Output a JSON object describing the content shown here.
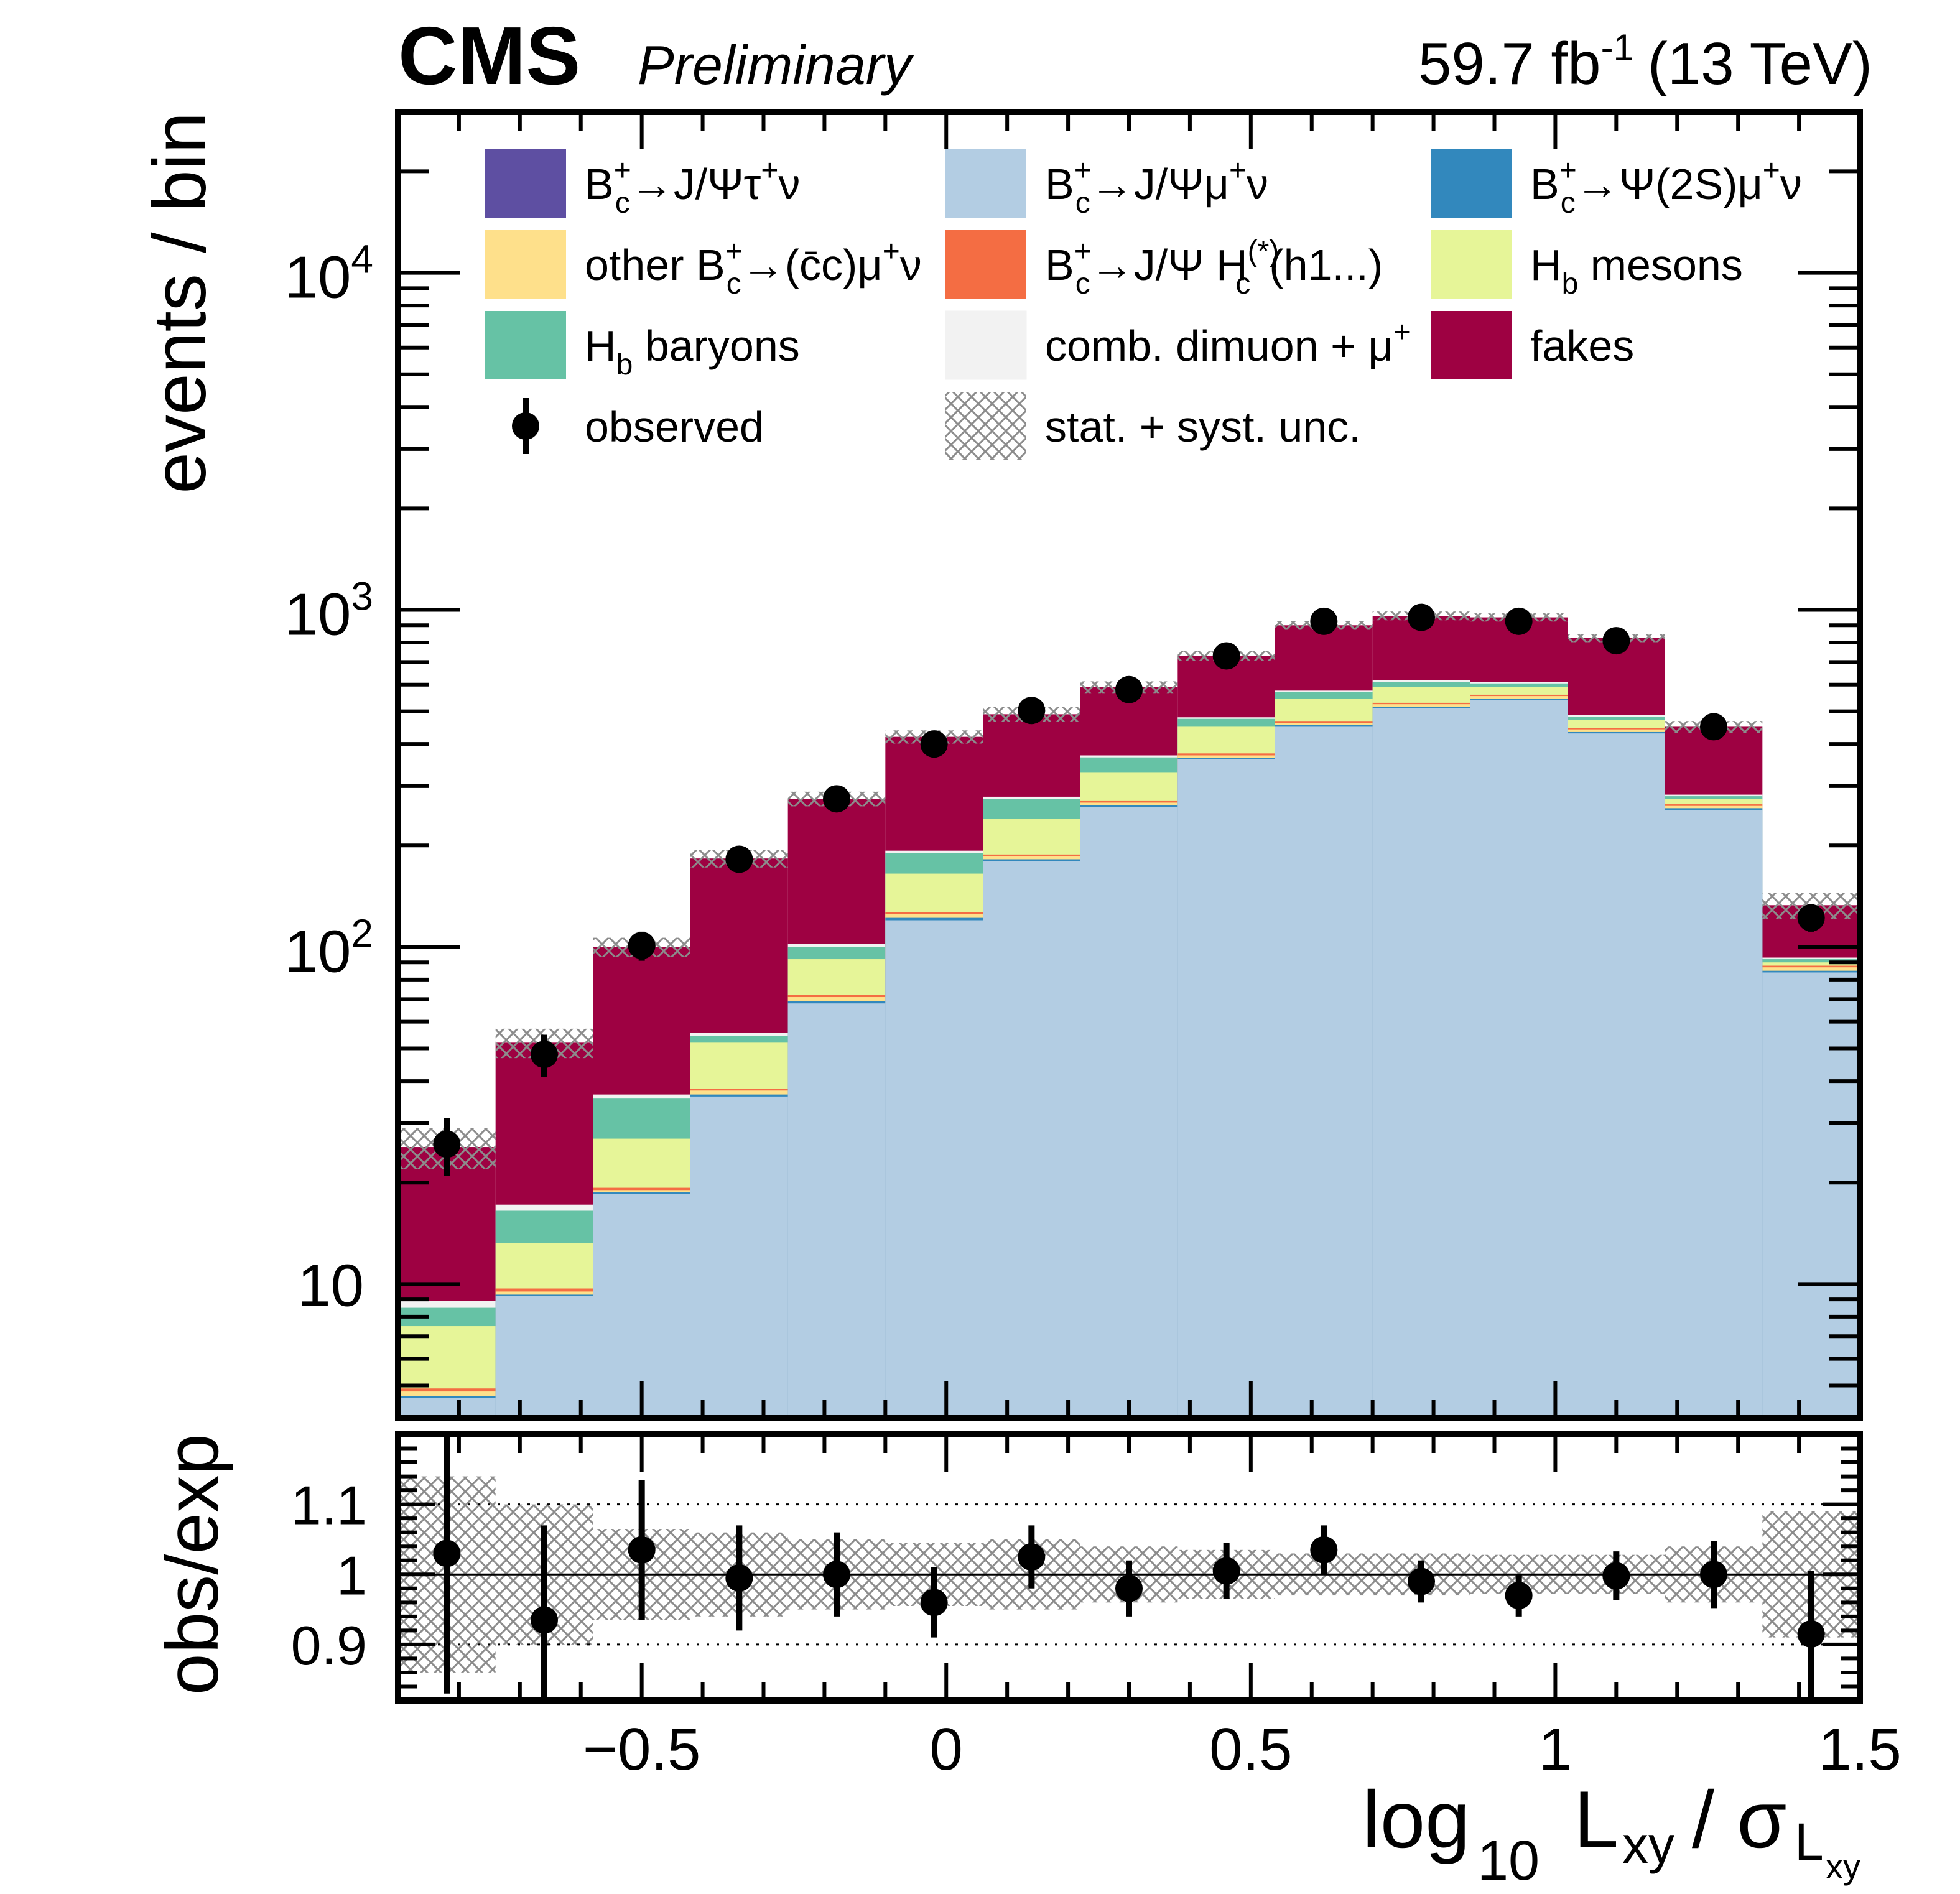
{
  "header": {
    "experiment": "CMS",
    "status": "Preliminary",
    "lumi_value": "59.7 fb",
    "lumi_exp": "-1",
    "energy": "(13 TeV)"
  },
  "axes": {
    "ylabel_top": "events / bin",
    "ylabel_bottom": "obs/exp",
    "xlabel_main": "log",
    "xlabel_sub10": "10",
    "xlabel_L": "L",
    "xlabel_xy": "xy",
    "xlabel_slash": "/ σ",
    "xlabel_sigma_sub": "L",
    "xlabel_sigma_subsub": "xy"
  },
  "legend": [
    {
      "id": "tau",
      "label": "B_c^+→J/Ψτ^+ν",
      "color": "#5e4fa2",
      "kind": "fill"
    },
    {
      "id": "mu",
      "label": "B_c^+→J/Ψμ^+ν",
      "color": "#b3cde3",
      "kind": "fill"
    },
    {
      "id": "psi2s",
      "label": "B_c^+→Ψ(2S)μ^+ν",
      "color": "#3288bd",
      "kind": "fill"
    },
    {
      "id": "otherbc",
      "label": "other B_c^+→(c̄c)μ^+ν",
      "color": "#fee08b",
      "kind": "fill"
    },
    {
      "id": "hc",
      "label": "B_c^+→J/Ψ H_c^(*)(h1...)",
      "color": "#f46d43",
      "kind": "fill"
    },
    {
      "id": "hbmes",
      "label": "H_b mesons",
      "color": "#e6f598",
      "kind": "fill"
    },
    {
      "id": "hbbar",
      "label": "H_b baryons",
      "color": "#66c2a5",
      "kind": "fill"
    },
    {
      "id": "comb",
      "label": "comb. dimuon + μ^+",
      "color": "#f2f2f2",
      "kind": "fill"
    },
    {
      "id": "fakes",
      "label": "fakes",
      "color": "#9e0142",
      "kind": "fill"
    },
    {
      "id": "obs",
      "label": "observed",
      "color": "#000000",
      "kind": "marker"
    },
    {
      "id": "unc",
      "label": "stat. + syst. unc.",
      "color": "#8c8c8c",
      "kind": "hatch"
    }
  ],
  "legend_text": {
    "l0": {
      "pre": "B",
      "sup": "+",
      "sub": "c",
      "post": "→J/Ψτ",
      "sup2": "+",
      "post2": "ν"
    },
    "l1": {
      "pre": "B",
      "sup": "+",
      "sub": "c",
      "post": "→J/Ψμ",
      "sup2": "+",
      "post2": "ν"
    },
    "l2": {
      "pre": "B",
      "sup": "+",
      "sub": "c",
      "post": "→Ψ(2S)μ",
      "sup2": "+",
      "post2": "ν"
    },
    "l3": {
      "pre": "other B",
      "sup": "+",
      "sub": "c",
      "post": "→(c̄c)μ",
      "sup2": "+",
      "post2": "ν"
    },
    "l4": {
      "pre": "B",
      "sup": "+",
      "sub": "c",
      "post": "→J/Ψ H",
      "sup2": "(*)",
      "sub2": "c",
      "post2": "(h1...)"
    },
    "l5": {
      "pre": "H",
      "sub": "b",
      "post": " mesons"
    },
    "l6": {
      "pre": "H",
      "sub": "b",
      "post": " baryons"
    },
    "l7": {
      "pre": "comb. dimuon + μ",
      "sup": "+"
    },
    "l8": {
      "pre": "fakes"
    },
    "l9": {
      "pre": "observed"
    },
    "l10": {
      "pre": "stat. + syst. unc."
    }
  },
  "chart_data": {
    "type": "bar",
    "stacked_histogram": true,
    "y_scale": "log",
    "x_range": [
      -0.9,
      1.5
    ],
    "y_range": [
      4,
      30000
    ],
    "bin_edges": [
      -0.9,
      -0.74,
      -0.58,
      -0.42,
      -0.26,
      -0.1,
      0.06,
      0.22,
      0.38,
      0.54,
      0.7,
      0.86,
      1.02,
      1.18,
      1.34,
      1.5
    ],
    "x_ticks": [
      "−0.5",
      "0",
      "0.5",
      "1",
      "1.5"
    ],
    "x_tick_values": [
      -0.5,
      0,
      0.5,
      1,
      1.5
    ],
    "y_ticks": [
      "10",
      "10^2",
      "10^3",
      "10^4"
    ],
    "y_tick_values": [
      10,
      100,
      1000,
      10000
    ],
    "stack_order": [
      "tau",
      "mu",
      "psi2s",
      "otherbc",
      "hc",
      "hbmes",
      "hbbar",
      "comb",
      "fakes"
    ],
    "series": [
      {
        "name": "B_c^+→J/Ψτ^+ν",
        "id": "tau",
        "values": [
          4.05,
          4.05,
          4.05,
          4.05,
          4.05,
          4.05,
          4.05,
          4.05,
          4.05,
          4.05,
          4.05,
          4.05,
          4.05,
          4.05,
          4.05
        ]
      },
      {
        "name": "B_c^+→J/Ψμ^+ν",
        "id": "mu",
        "values": [
          4.6,
          9.2,
          18.5,
          36,
          68,
          120,
          180,
          260,
          360,
          450,
          510,
          540,
          430,
          255,
          84
        ]
      },
      {
        "name": "B_c^+→Ψ(2S)μ^+ν",
        "id": "psi2s",
        "values": [
          4.65,
          9.3,
          18.7,
          36.5,
          69,
          122,
          182,
          263,
          364,
          455,
          515,
          545,
          434,
          258,
          85
        ]
      },
      {
        "name": "other B_c^+→(c̄c)μ^+ν",
        "id": "otherbc",
        "values": [
          4.8,
          9.5,
          19,
          37.5,
          71,
          125,
          186,
          268,
          370,
          462,
          525,
          555,
          442,
          262,
          87
        ]
      },
      {
        "name": "B_c^+→J/Ψ H_c^(*)(h1...)",
        "id": "hc",
        "values": [
          4.9,
          9.7,
          19.3,
          38,
          72,
          127,
          188,
          272,
          375,
          468,
          530,
          560,
          446,
          265,
          88
        ]
      },
      {
        "name": "H_b mesons",
        "id": "hbmes",
        "values": [
          7.5,
          13.2,
          27,
          52,
          92,
          165,
          240,
          330,
          450,
          545,
          590,
          590,
          472,
          275,
          90
        ]
      },
      {
        "name": "H_b baryons",
        "id": "hbbar",
        "values": [
          8.5,
          16.5,
          35.5,
          54.5,
          100,
          190,
          275,
          365,
          475,
          570,
          610,
          605,
          482,
          280,
          92
        ]
      },
      {
        "name": "comb. dimuon + μ^+",
        "id": "comb",
        "values": [
          8.9,
          17.2,
          36.5,
          55.5,
          102,
          193,
          279,
          370,
          480,
          576,
          618,
          612,
          487,
          283,
          93
        ]
      },
      {
        "name": "fakes",
        "id": "fakes",
        "values": [
          25.5,
          52,
          100,
          183,
          275,
          420,
          490,
          590,
          730,
          900,
          960,
          950,
          825,
          450,
          133
        ]
      }
    ],
    "observed": {
      "name": "observed",
      "x": [
        -0.82,
        -0.66,
        -0.5,
        -0.34,
        -0.18,
        -0.02,
        0.14,
        0.3,
        0.46,
        0.62,
        0.78,
        0.94,
        1.1,
        1.26,
        1.42
      ],
      "values": [
        26,
        48,
        101,
        182,
        275,
        400,
        503,
        580,
        730,
        925,
        950,
        925,
        810,
        450,
        122
      ],
      "errors": [
        5.1,
        6.9,
        10,
        13.5,
        16.6,
        20,
        22.4,
        24.1,
        27,
        30.4,
        30.8,
        30.4,
        28.5,
        21.2,
        11
      ]
    },
    "uncertainty_rel": [
      0.14,
      0.1,
      0.065,
      0.06,
      0.05,
      0.045,
      0.05,
      0.04,
      0.035,
      0.03,
      0.03,
      0.028,
      0.028,
      0.04,
      0.09
    ],
    "ratio": {
      "y_range": [
        0.82,
        1.2
      ],
      "y_ticks": [
        "0.9",
        "1",
        "1.1"
      ],
      "y_tick_values": [
        0.9,
        1.0,
        1.1
      ],
      "values": [
        1.03,
        0.935,
        1.035,
        0.995,
        1.0,
        0.96,
        1.025,
        0.98,
        1.005,
        1.035,
        0.99,
        0.97,
        0.998,
        1.0,
        0.915
      ],
      "errors": [
        0.2,
        0.135,
        0.1,
        0.075,
        0.06,
        0.05,
        0.045,
        0.04,
        0.04,
        0.035,
        0.03,
        0.03,
        0.035,
        0.048,
        0.09
      ],
      "dotted_lines": [
        0.9,
        1.1
      ]
    }
  }
}
